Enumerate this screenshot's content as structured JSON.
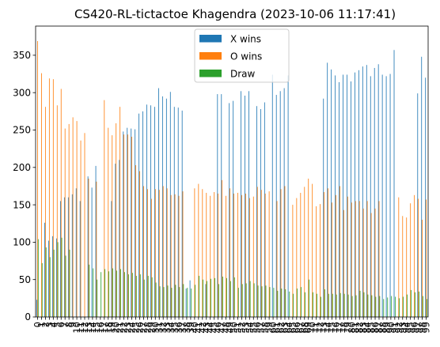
{
  "chart_data": {
    "type": "bar",
    "title": "CS420-RL-tictactoe Khagendra (2023-10-06 11:17:41)",
    "xlabel": "",
    "ylabel": "",
    "ylim": [
      0,
      389
    ],
    "yticks": [
      0,
      50,
      100,
      150,
      200,
      250,
      300,
      350
    ],
    "grid": false,
    "legend_position": "top-center",
    "categories": [
      0,
      1,
      2,
      3,
      4,
      5,
      6,
      7,
      8,
      9,
      10,
      11,
      12,
      13,
      14,
      15,
      16,
      17,
      18,
      19,
      20,
      21,
      22,
      23,
      24,
      25,
      26,
      27,
      28,
      29,
      30,
      31,
      32,
      33,
      34,
      35,
      36,
      37,
      38,
      39,
      40,
      41,
      42,
      43,
      44,
      45,
      46,
      47,
      48,
      49,
      50,
      51,
      52,
      53,
      54,
      55,
      56,
      57,
      58,
      59,
      60,
      61,
      62,
      63,
      64,
      65,
      66,
      67,
      68,
      69,
      70,
      71,
      72,
      73,
      74,
      75,
      76,
      77,
      78,
      79,
      80,
      81,
      82,
      83,
      84,
      85,
      86,
      87,
      88,
      89,
      90,
      91,
      92,
      93,
      94,
      95,
      96,
      97,
      98,
      99
    ],
    "series": [
      {
        "name": "X wins",
        "color": "#1f77b4",
        "values": [
          23,
          0,
          126,
          102,
          108,
          105,
          155,
          160,
          160,
          164,
          172,
          155,
          0,
          188,
          173,
          202,
          0,
          0,
          0,
          155,
          205,
          210,
          248,
          253,
          252,
          251,
          272,
          275,
          284,
          283,
          281,
          306,
          295,
          292,
          301,
          281,
          280,
          276,
          38,
          49,
          0,
          0,
          0,
          44,
          0,
          0,
          298,
          298,
          0,
          286,
          289,
          0,
          302,
          296,
          302,
          0,
          282,
          278,
          287,
          0,
          324,
          297,
          302,
          306,
          323,
          0,
          0,
          0,
          0,
          0,
          0,
          0,
          0,
          292,
          340,
          331,
          323,
          314,
          324,
          324,
          315,
          327,
          330,
          335,
          337,
          322,
          333,
          338,
          324,
          322,
          325,
          357,
          0,
          0,
          0,
          0,
          0,
          299,
          348,
          320
        ]
      },
      {
        "name": "O wins",
        "color": "#ff7f0e",
        "values": [
          369,
          326,
          281,
          319,
          318,
          283,
          305,
          252,
          258,
          267,
          262,
          236,
          246,
          185,
          0,
          181,
          0,
          290,
          253,
          243,
          259,
          281,
          244,
          244,
          241,
          203,
          195,
          175,
          171,
          158,
          171,
          170,
          175,
          172,
          163,
          164,
          162,
          168,
          0,
          0,
          172,
          178,
          171,
          166,
          162,
          167,
          165,
          183,
          162,
          172,
          165,
          166,
          163,
          165,
          159,
          161,
          174,
          170,
          165,
          168,
          0,
          155,
          171,
          175,
          0,
          150,
          159,
          166,
          174,
          185,
          178,
          148,
          151,
          167,
          172,
          153,
          163,
          175,
          143,
          161,
          153,
          155,
          155,
          145,
          155,
          139,
          145,
          155,
          0,
          0,
          0,
          0,
          160,
          135,
          133,
          152,
          163,
          158,
          130,
          157
        ]
      },
      {
        "name": "Draw",
        "color": "#2ca02c",
        "values": [
          104,
          72,
          93,
          80,
          90,
          100,
          106,
          82,
          90,
          0,
          0,
          0,
          0,
          70,
          65,
          50,
          60,
          64,
          61,
          65,
          62,
          64,
          60,
          57,
          59,
          55,
          57,
          50,
          55,
          53,
          46,
          41,
          40,
          42,
          39,
          43,
          40,
          44,
          39,
          38,
          43,
          55,
          50,
          48,
          51,
          52,
          44,
          54,
          52,
          48,
          53,
          39,
          44,
          45,
          48,
          45,
          42,
          41,
          42,
          40,
          39,
          35,
          38,
          37,
          34,
          31,
          38,
          40,
          33,
          50,
          33,
          31,
          27,
          37,
          31,
          31,
          30,
          32,
          31,
          30,
          28,
          29,
          35,
          33,
          30,
          29,
          27,
          28,
          24,
          26,
          28,
          27,
          25,
          27,
          30,
          36,
          33,
          34,
          28,
          24
        ]
      }
    ]
  }
}
